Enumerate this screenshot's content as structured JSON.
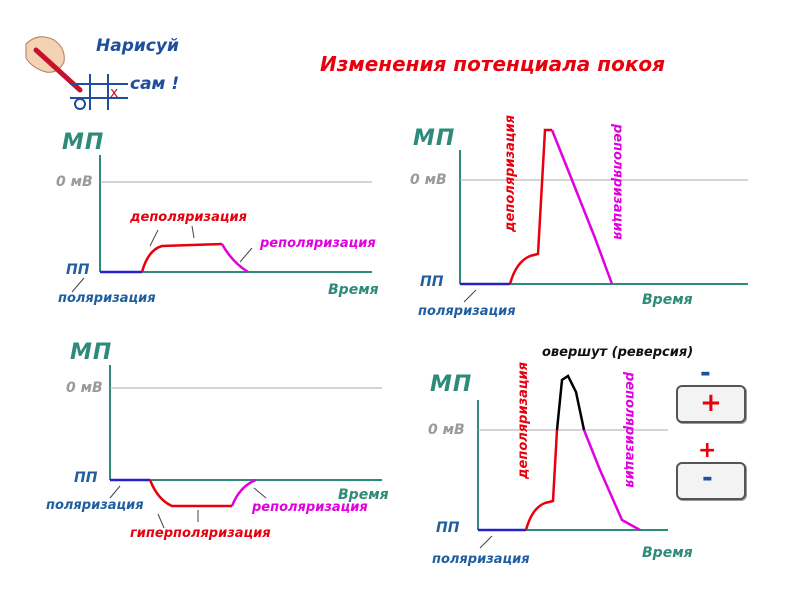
{
  "logo": {
    "line1": "Нарисуй",
    "line2": "сам !"
  },
  "title": "Изменения потенциала покоя",
  "common": {
    "mtp": "МП",
    "zero": "0 мВ",
    "ppt": "ПП",
    "time": "Время",
    "polarization": "поляризация"
  },
  "panel1": {
    "depolarization": "деполяризация",
    "repolarization": "реполяризация"
  },
  "panel2": {
    "depolarization": "деполяризация",
    "repolarization": "реполяризация"
  },
  "panel3": {
    "hyperpolarization": "гиперполяризация",
    "repolarization": "реполяризация"
  },
  "panel4": {
    "overshoot": "овершут (реверсия)",
    "depolarization": "деполяризация",
    "repolarization": "реполяризация"
  },
  "membrane": {
    "top_outer": "-",
    "top_inner": "+",
    "bottom_outer": "+",
    "bottom_inner": "-"
  },
  "colors": {
    "axis": "#2e8b7a",
    "zero_line": "#aaaaaa",
    "polarization": "#2222cc",
    "depolarization": "#e8000f",
    "repolarization": "#e000e0",
    "overshoot": "#000000"
  }
}
